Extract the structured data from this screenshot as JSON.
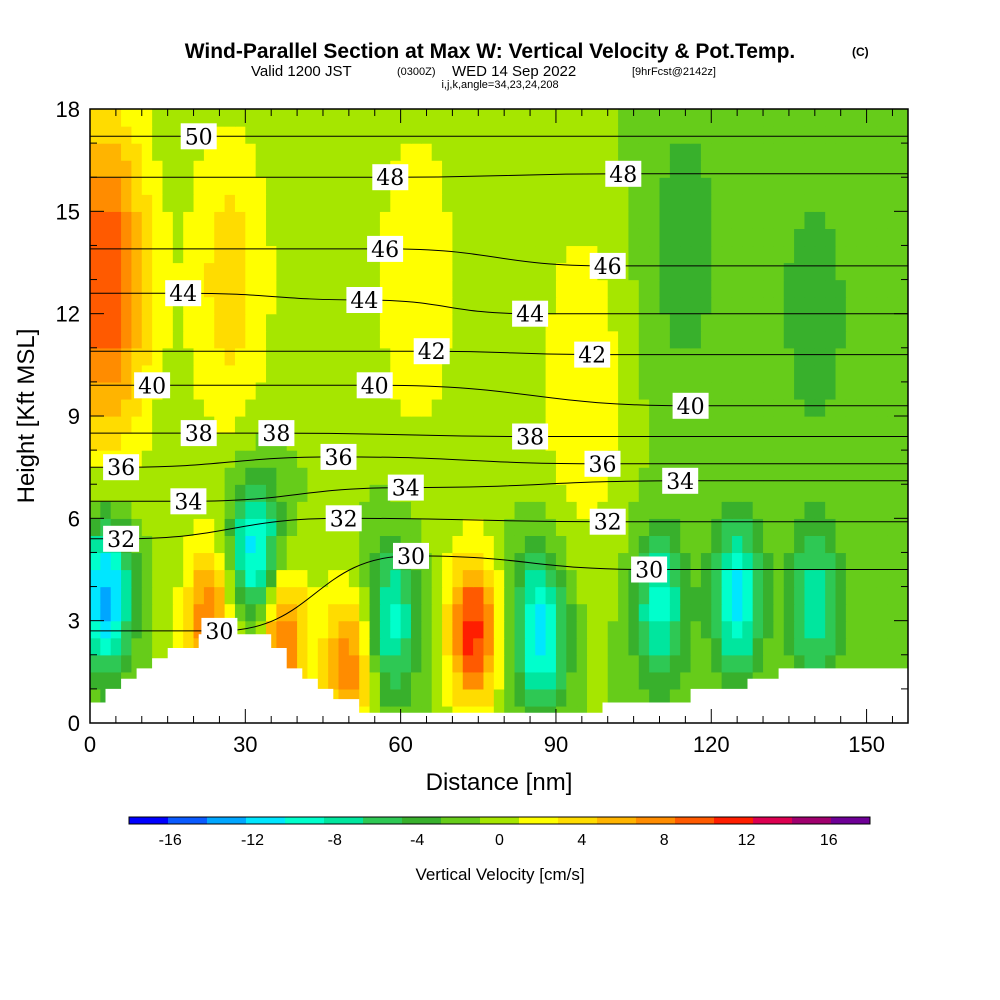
{
  "header": {
    "title_main": "Wind-Parallel Section at Max W: Vertical Velocity & Pot.Temp.",
    "title_units": "(C)",
    "valid_a": "Valid 1200 JST",
    "valid_zone": "(0300Z)",
    "valid_b": "WED 14 Sep 2022",
    "valid_fcst": "[9hrFcst@2142z]",
    "params": "i,j,k,angle=34,23,24,208"
  },
  "chart_data": {
    "type": "heatmap",
    "title": "Wind-Parallel Section at Max W: Vertical Velocity & Pot.Temp.",
    "xlabel": "Distance [nm]",
    "ylabel": "Height [Kft MSL]",
    "xlim": [
      0,
      158
    ],
    "ylim": [
      0,
      18
    ],
    "x_ticks": [
      0,
      30,
      60,
      90,
      120,
      150
    ],
    "y_ticks": [
      0,
      3,
      6,
      9,
      12,
      15,
      18
    ],
    "colorbar": {
      "label": "Vertical Velocity [cm/s]",
      "tick_values": [
        -16,
        -12,
        -8,
        -4,
        0,
        4,
        8,
        12,
        16
      ],
      "tick_labels": [
        "-16",
        "-12",
        "-8",
        "-4",
        "0",
        "4",
        "8",
        "12",
        "16"
      ],
      "levels": [
        -18,
        -16,
        -14,
        -12,
        -10,
        -8,
        -6,
        -4,
        -2,
        0,
        2,
        4,
        6,
        8,
        10,
        12,
        14,
        16,
        18
      ],
      "colors": [
        "#0000ff",
        "#0a5aff",
        "#00a6ff",
        "#00e6ff",
        "#00ffcc",
        "#00e69e",
        "#2ec854",
        "#38b02c",
        "#66cc1a",
        "#a6e600",
        "#ffff00",
        "#ffdc00",
        "#ffb400",
        "#ff8c00",
        "#ff5a00",
        "#ff1e00",
        "#dc0050",
        "#a0006e",
        "#6e0096"
      ]
    },
    "velocity_cells": [
      {
        "x": 3,
        "y": 13,
        "w": 12,
        "v": 14
      },
      {
        "x": 3,
        "y": 3.8,
        "w": -13,
        "v": -14
      },
      {
        "x": 32,
        "y": 5,
        "w": -12,
        "v": -13
      },
      {
        "x": 23,
        "y": 3,
        "w": 10,
        "v": 8
      },
      {
        "x": 37,
        "y": 2.5,
        "w": 11,
        "v": 10
      },
      {
        "x": 50,
        "y": 1.7,
        "w": 10,
        "v": 8
      },
      {
        "x": 58,
        "y": 3,
        "w": -9,
        "v": -8
      },
      {
        "x": 74,
        "y": 2.7,
        "w": 13,
        "v": 12
      },
      {
        "x": 87,
        "y": 2.7,
        "w": -12,
        "v": -10
      },
      {
        "x": 110,
        "y": 3.4,
        "w": -9,
        "v": -8
      },
      {
        "x": 125,
        "y": 3.7,
        "w": -11,
        "v": -10
      },
      {
        "x": 140,
        "y": 3.4,
        "w": -8,
        "v": -6
      },
      {
        "x": 27,
        "y": 13,
        "w": 5,
        "v": 4
      },
      {
        "x": 63,
        "y": 13,
        "w": 4,
        "v": 2
      },
      {
        "x": 95,
        "y": 10,
        "w": 4,
        "v": 2
      },
      {
        "x": 115,
        "y": 14,
        "w": -3,
        "v": -4
      },
      {
        "x": 140,
        "y": 12,
        "w": -3,
        "v": -4
      }
    ],
    "theta_contours": [
      {
        "label": "30",
        "label_at": [
          [
            25,
            2.7
          ],
          [
            62,
            4.9
          ],
          [
            108,
            4.5
          ]
        ]
      },
      {
        "label": "32",
        "label_at": [
          [
            6,
            5.4
          ],
          [
            49,
            6.0
          ],
          [
            100,
            5.9
          ]
        ]
      },
      {
        "label": "34",
        "label_at": [
          [
            19,
            6.5
          ],
          [
            61,
            6.9
          ],
          [
            114,
            7.1
          ]
        ]
      },
      {
        "label": "36",
        "label_at": [
          [
            6,
            7.5
          ],
          [
            48,
            7.8
          ],
          [
            99,
            7.6
          ]
        ]
      },
      {
        "label": "38",
        "label_at": [
          [
            21,
            8.5
          ],
          [
            36,
            8.5
          ],
          [
            85,
            8.4
          ]
        ]
      },
      {
        "label": "40",
        "label_at": [
          [
            12,
            9.9
          ],
          [
            55,
            9.9
          ],
          [
            116,
            9.3
          ]
        ]
      },
      {
        "label": "42",
        "label_at": [
          [
            66,
            10.9
          ],
          [
            97,
            10.8
          ]
        ]
      },
      {
        "label": "44",
        "label_at": [
          [
            18,
            12.6
          ],
          [
            53,
            12.4
          ],
          [
            85,
            12.0
          ]
        ]
      },
      {
        "label": "46",
        "label_at": [
          [
            57,
            13.9
          ],
          [
            100,
            13.4
          ]
        ]
      },
      {
        "label": "48",
        "label_at": [
          [
            58,
            16.0
          ],
          [
            103,
            16.1
          ]
        ]
      },
      {
        "label": "50",
        "label_at": [
          [
            21,
            17.2
          ]
        ]
      }
    ],
    "terrain": {
      "note_levels_kft": [
        0.7,
        1.0,
        1.3,
        1.6,
        1.9,
        2.2,
        2.6
      ],
      "profile": [
        [
          0,
          0.6
        ],
        [
          3,
          0.6
        ],
        [
          3,
          1.0
        ],
        [
          6,
          1.0
        ],
        [
          6,
          1.3
        ],
        [
          9,
          1.3
        ],
        [
          9,
          1.6
        ],
        [
          12,
          1.6
        ],
        [
          12,
          1.9
        ],
        [
          15,
          1.9
        ],
        [
          15,
          2.2
        ],
        [
          21,
          2.2
        ],
        [
          21,
          2.6
        ],
        [
          35,
          2.6
        ],
        [
          35,
          2.2
        ],
        [
          38,
          2.2
        ],
        [
          38,
          1.6
        ],
        [
          41,
          1.6
        ],
        [
          41,
          1.3
        ],
        [
          44,
          1.3
        ],
        [
          44,
          1.0
        ],
        [
          47,
          1.0
        ],
        [
          47,
          0.7
        ],
        [
          52,
          0.7
        ],
        [
          52,
          0.3
        ],
        [
          99,
          0.3
        ],
        [
          99,
          0.6
        ],
        [
          108,
          0.6
        ],
        [
          108,
          0.6
        ],
        [
          116,
          0.6
        ],
        [
          116,
          1.0
        ],
        [
          127,
          1.0
        ],
        [
          127,
          1.3
        ],
        [
          133,
          1.3
        ],
        [
          133,
          1.6
        ],
        [
          144,
          1.6
        ],
        [
          144,
          1.6
        ],
        [
          158,
          1.6
        ]
      ]
    }
  }
}
